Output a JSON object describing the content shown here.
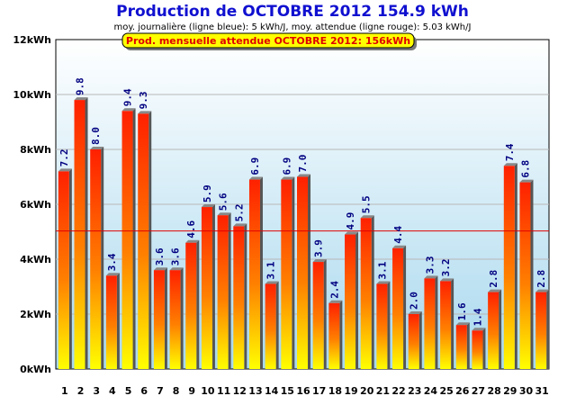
{
  "header": {
    "title": "Production de OCTOBRE 2012  154.9 kWh",
    "subtitle": "moy. journalière (ligne bleue): 5 kWh/J,  moy. attendue (ligne rouge): 5.03 kWh/J",
    "badge": "Prod. mensuelle attendue OCTOBRE 2012: 156kWh"
  },
  "colors": {
    "title": "#1010d0",
    "bar_top": "#ff2000",
    "bar_bottom": "#ffff00",
    "bar_side": "#555555",
    "expected_line": "#e00000",
    "badge_fill": "#ffff00",
    "label": "#000080"
  },
  "chart_data": {
    "type": "bar",
    "title": "Production de OCTOBRE 2012  154.9 kWh",
    "categories": [
      "1",
      "2",
      "3",
      "4",
      "5",
      "6",
      "7",
      "8",
      "9",
      "10",
      "11",
      "12",
      "13",
      "14",
      "15",
      "16",
      "17",
      "18",
      "19",
      "20",
      "21",
      "22",
      "23",
      "24",
      "25",
      "26",
      "27",
      "28",
      "29",
      "30",
      "31"
    ],
    "values": [
      7.2,
      9.8,
      8.0,
      3.4,
      9.4,
      9.3,
      3.6,
      3.6,
      4.6,
      5.9,
      5.6,
      5.2,
      6.9,
      3.1,
      6.9,
      7.0,
      3.9,
      2.4,
      4.9,
      5.5,
      3.1,
      4.4,
      2.0,
      3.3,
      3.2,
      1.6,
      1.4,
      2.8,
      7.4,
      6.8,
      2.8
    ],
    "data_labels": [
      "7.2",
      "9.8",
      "8.0",
      "3.4",
      "9.4",
      "9.3",
      "3.6",
      "3.6",
      "4.6",
      "5.9",
      "5.6",
      "5.2",
      "6.9",
      "3.1",
      "6.9",
      "7.0",
      "3.9",
      "2.4",
      "4.9",
      "5.5",
      "3.1",
      "4.4",
      "2.0",
      "3.3",
      "3.2",
      "1.6",
      "1.4",
      "2.8",
      "7.4",
      "6.8",
      "2.8"
    ],
    "yticks": [
      0,
      2,
      4,
      6,
      8,
      10,
      12
    ],
    "ytick_labels": [
      "0kWh",
      "2kWh",
      "4kWh",
      "6kWh",
      "8kWh",
      "10kWh",
      "12kWh"
    ],
    "ylim": [
      0,
      12
    ],
    "expected_daily": 5.03,
    "grid": true
  }
}
